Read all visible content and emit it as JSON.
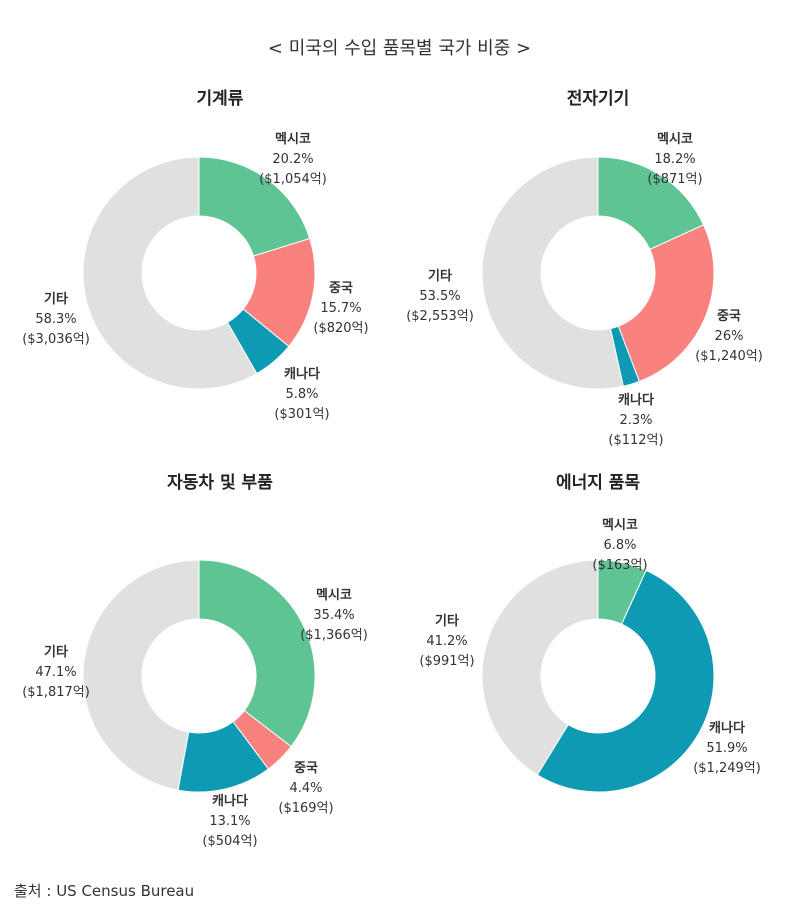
{
  "title": "< 미국의 수입 품목별 국가 비중 >",
  "source": "출처 : US Census Bureau",
  "chart_data": [
    {
      "type": "pie",
      "title": "기계류",
      "slices": [
        {
          "label": "멕시코",
          "percent": "20.2%",
          "amount": "($1,054억)",
          "value": 20.2,
          "color": "#5ec494"
        },
        {
          "label": "중국",
          "percent": "15.7%",
          "amount": "($820억)",
          "value": 15.7,
          "color": "#f9827f"
        },
        {
          "label": "캐나다",
          "percent": "5.8%",
          "amount": "($301억)",
          "value": 5.8,
          "color": "#0f9ab4"
        },
        {
          "label": "기타",
          "percent": "58.3%",
          "amount": "($3,036억)",
          "value": 58.3,
          "color": "#e0e0e0"
        }
      ]
    },
    {
      "type": "pie",
      "title": "전자기기",
      "slices": [
        {
          "label": "멕시코",
          "percent": "18.2%",
          "amount": "($871억)",
          "value": 18.2,
          "color": "#5ec494"
        },
        {
          "label": "중국",
          "percent": "26%",
          "amount": "($1,240억)",
          "value": 26,
          "color": "#f9827f"
        },
        {
          "label": "캐나다",
          "percent": "2.3%",
          "amount": "($112억)",
          "value": 2.3,
          "color": "#0f9ab4"
        },
        {
          "label": "기타",
          "percent": "53.5%",
          "amount": "($2,553억)",
          "value": 53.5,
          "color": "#e0e0e0"
        }
      ]
    },
    {
      "type": "pie",
      "title": "자동차 및 부품",
      "slices": [
        {
          "label": "멕시코",
          "percent": "35.4%",
          "amount": "($1,366억)",
          "value": 35.4,
          "color": "#5ec494"
        },
        {
          "label": "중국",
          "percent": "4.4%",
          "amount": "($169억)",
          "value": 4.4,
          "color": "#f9827f"
        },
        {
          "label": "캐나다",
          "percent": "13.1%",
          "amount": "($504억)",
          "value": 13.1,
          "color": "#0f9ab4"
        },
        {
          "label": "기타",
          "percent": "47.1%",
          "amount": "($1,817억)",
          "value": 47.1,
          "color": "#e0e0e0"
        }
      ]
    },
    {
      "type": "pie",
      "title": "에너지 품목",
      "slices": [
        {
          "label": "멕시코",
          "percent": "6.8%",
          "amount": "($163억)",
          "value": 6.8,
          "color": "#5ec494"
        },
        {
          "label": "캐나다",
          "percent": "51.9%",
          "amount": "($1,249억)",
          "value": 51.9,
          "color": "#0f9ab4"
        },
        {
          "label": "기타",
          "percent": "41.2%",
          "amount": "($991억)",
          "value": 41.2,
          "color": "#e0e0e0"
        }
      ]
    }
  ]
}
